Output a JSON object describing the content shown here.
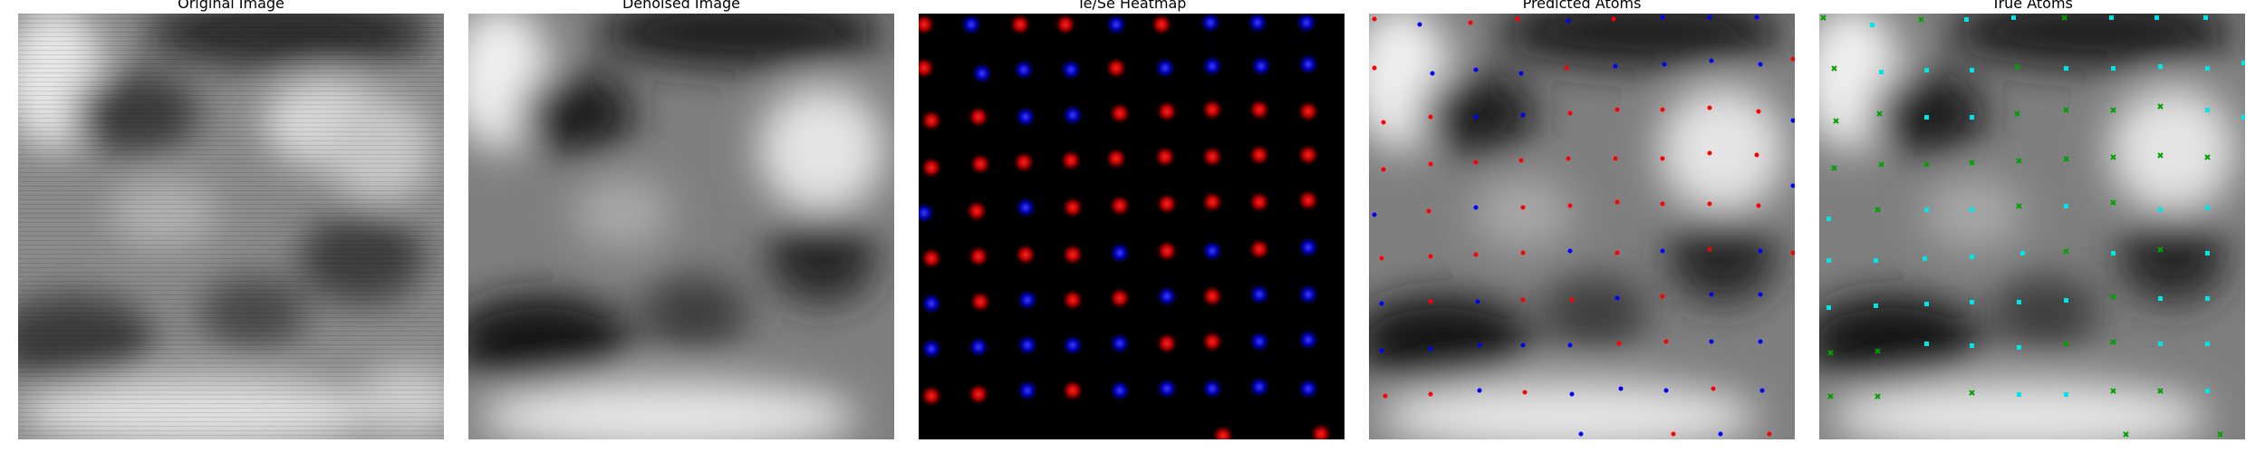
{
  "figure": {
    "panels": [
      {
        "id": "original",
        "title": "Original Image"
      },
      {
        "id": "denoised",
        "title": "Denoised Image"
      },
      {
        "id": "heatmap",
        "title": "Te/Se Heatmap"
      },
      {
        "id": "predicted",
        "title": "Predicted Atoms"
      },
      {
        "id": "true",
        "title": "True Atoms"
      }
    ]
  }
}
